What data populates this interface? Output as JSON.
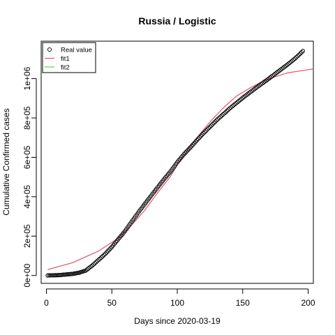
{
  "chart_data": {
    "type": "scatter",
    "title": "Russia / Logistic",
    "xlabel": "Days since 2020-03-19",
    "ylabel": "Cumulative Confirmed cases",
    "xlim": [
      -4,
      204
    ],
    "ylim": [
      -40000,
      1190000
    ],
    "x_ticks": [
      0,
      50,
      100,
      150,
      200
    ],
    "x_tick_labels": [
      "0",
      "50",
      "100",
      "150",
      "200"
    ],
    "y_ticks": [
      0,
      200000,
      400000,
      600000,
      800000,
      1000000
    ],
    "y_tick_labels": [
      "0e+00",
      "2e+05",
      "4e+05",
      "6e+05",
      "8e+05",
      "1e+06"
    ],
    "grid": false,
    "legend": {
      "position": "top-left",
      "entries": [
        {
          "label": "Real value",
          "type": "point",
          "color": "#000000"
        },
        {
          "label": "fit1",
          "type": "line",
          "color": "#DF536B"
        },
        {
          "label": "fit2",
          "type": "line",
          "color": "#61D04F"
        }
      ]
    },
    "series": [
      {
        "name": "Real value",
        "type": "points",
        "color": "#000000",
        "x": [
          1,
          10,
          20,
          25,
          30,
          35,
          40,
          45,
          50,
          55,
          60,
          65,
          70,
          75,
          80,
          85,
          90,
          95,
          100,
          105,
          110,
          115,
          120,
          125,
          130,
          135,
          140,
          145,
          150,
          155,
          160,
          165,
          170,
          175,
          180,
          185,
          190,
          196
        ],
        "y": [
          200,
          2000,
          8000,
          14000,
          25000,
          50000,
          80000,
          110000,
          145000,
          185000,
          225000,
          272000,
          318000,
          362000,
          405000,
          448000,
          490000,
          530000,
          575000,
          615000,
          650000,
          687000,
          722000,
          755000,
          788000,
          818000,
          848000,
          875000,
          902000,
          927000,
          952000,
          976000,
          1000000,
          1025000,
          1050000,
          1075000,
          1102000,
          1140000
        ]
      },
      {
        "name": "fit1",
        "type": "line",
        "color": "#DF536B",
        "x": [
          1,
          20,
          40,
          55,
          65,
          75,
          85,
          95,
          100,
          105,
          115,
          125,
          135,
          145,
          155,
          165,
          175,
          185,
          195,
          205
        ],
        "y": [
          30000,
          65000,
          125000,
          190000,
          255000,
          330000,
          420000,
          505000,
          560000,
          610000,
          700000,
          780000,
          850000,
          910000,
          950000,
          985000,
          1010000,
          1030000,
          1040000,
          1050000
        ]
      }
    ]
  }
}
